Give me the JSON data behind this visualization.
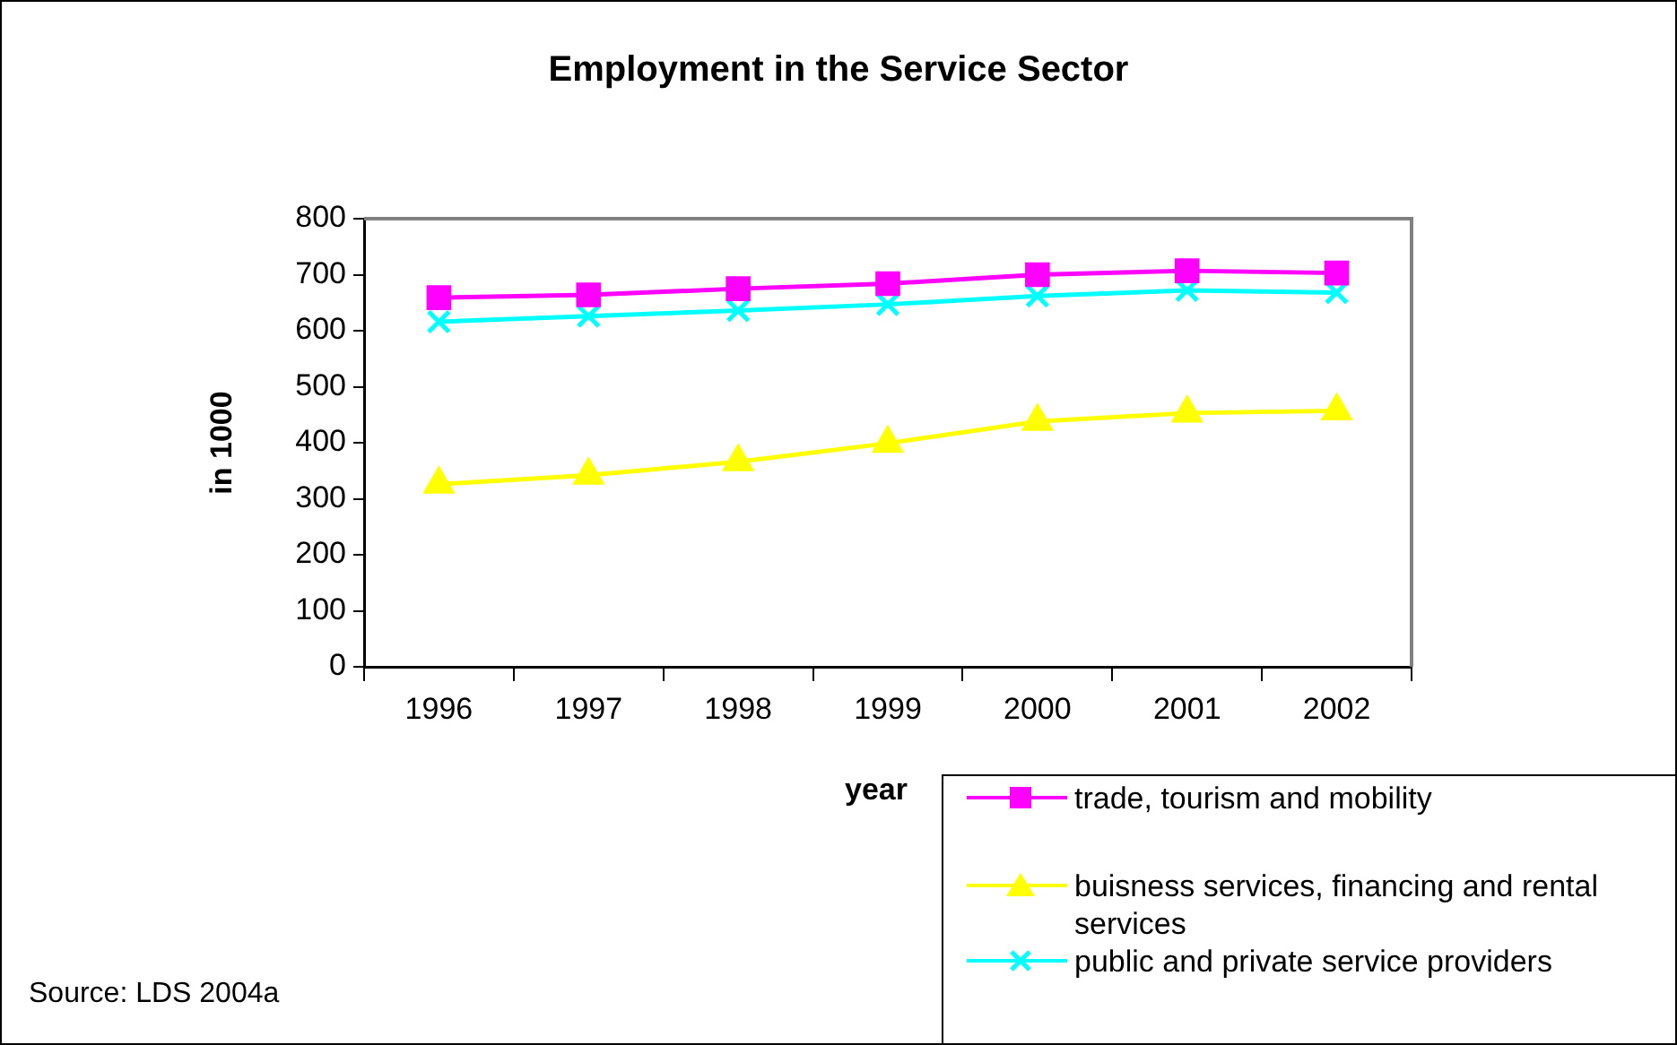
{
  "chart_data": {
    "type": "line",
    "title": "Employment in the Service Sector",
    "xlabel": "year",
    "ylabel": "in 1000",
    "categories": [
      "1996",
      "1997",
      "1998",
      "1999",
      "2000",
      "2001",
      "2002"
    ],
    "series": [
      {
        "name": "trade, tourism and mobility",
        "color": "#ff00ff",
        "marker": "square",
        "values": [
          659,
          664,
          675,
          684,
          700,
          707,
          703
        ]
      },
      {
        "name": "buisness services, financing and rental services",
        "color": "#ffff00",
        "marker": "triangle",
        "values": [
          326,
          342,
          366,
          399,
          438,
          453,
          457
        ]
      },
      {
        "name": "public and private service providers",
        "color": "#00ffff",
        "marker": "cross",
        "values": [
          616,
          626,
          636,
          647,
          662,
          672,
          668
        ]
      }
    ],
    "ylim": [
      0,
      800
    ],
    "yticks": [
      0,
      100,
      200,
      300,
      400,
      500,
      600,
      700,
      800
    ],
    "grid": false,
    "legend": "bottom right",
    "annotations": [
      "Source: LDS 2004a"
    ]
  }
}
